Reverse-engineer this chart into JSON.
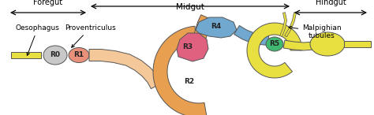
{
  "bg_color": "#ffffff",
  "foregut_label": "Foregut",
  "midgut_label": "Midgut",
  "hindgut_label": "Hindgut",
  "oesophagus_label": "Oesophagus",
  "proventriculus_label": "Proventriculus",
  "malpighian_label": "Malpighian\ntubules",
  "esophagus_color": "#e8e040",
  "hindgut_color": "#e8e040",
  "r0_color": "#c8c8c8",
  "r1_color": "#e8907a",
  "r2_color": "#e8a050",
  "r2_light_color": "#f5c89a",
  "r3_color": "#e06080",
  "r4_color": "#70a8d0",
  "r5_color": "#40b870",
  "outline_color": "#555555",
  "arrow_color": "#000000",
  "text_color": "#000000",
  "label_fontsize": 7.0,
  "region_fontsize": 6.5
}
